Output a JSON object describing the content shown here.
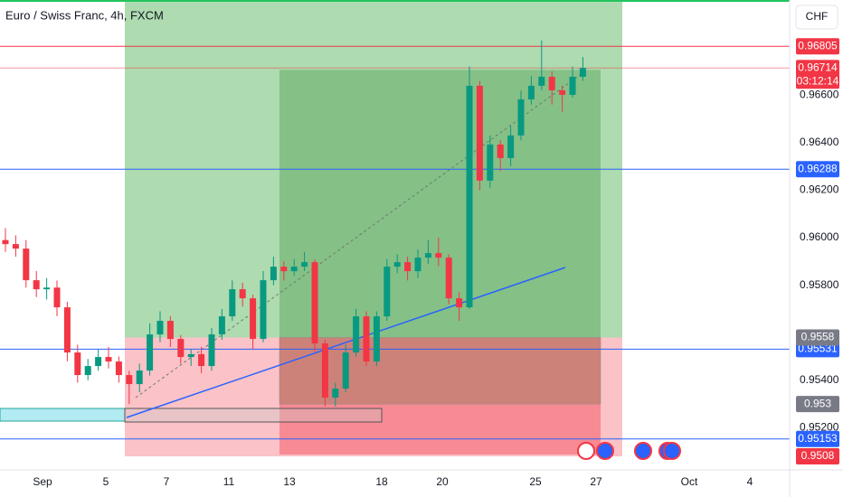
{
  "chart_data": {
    "type": "candlestick",
    "title": "Euro / Swiss Franc, 4h, FXCM",
    "currency": "CHF",
    "ylim": [
      0.95023,
      0.97
    ],
    "yticks": [
      {
        "value": 0.952,
        "label": "0.95200"
      },
      {
        "value": 0.954,
        "label": "0.95400"
      },
      {
        "value": 0.958,
        "label": "0.95800"
      },
      {
        "value": 0.96,
        "label": "0.96000"
      },
      {
        "value": 0.962,
        "label": "0.96200"
      },
      {
        "value": 0.964,
        "label": "0.96400"
      },
      {
        "value": 0.966,
        "label": "0.96600"
      }
    ],
    "xticks": [
      "Sep",
      "5",
      "7",
      "11",
      "13",
      "18",
      "20",
      "25",
      "27",
      "Oct",
      "4"
    ],
    "up_color": "#089981",
    "down_color": "#f23645",
    "candles": [
      [
        0.9599,
        0.9604,
        0.9594,
        0.95973
      ],
      [
        0.95973,
        0.9601,
        0.9592,
        0.95954
      ],
      [
        0.95954,
        0.9599,
        0.9579,
        0.95821
      ],
      [
        0.95821,
        0.9586,
        0.9575,
        0.95783
      ],
      [
        0.95783,
        0.9583,
        0.9574,
        0.9579
      ],
      [
        0.9579,
        0.9582,
        0.9567,
        0.95707
      ],
      [
        0.95707,
        0.9573,
        0.9548,
        0.95517
      ],
      [
        0.95517,
        0.9555,
        0.9539,
        0.95422
      ],
      [
        0.95422,
        0.9549,
        0.954,
        0.9546
      ],
      [
        0.9546,
        0.9553,
        0.9544,
        0.95498
      ],
      [
        0.95498,
        0.9554,
        0.9545,
        0.95479
      ],
      [
        0.95479,
        0.955,
        0.9539,
        0.95422
      ],
      [
        0.95422,
        0.9544,
        0.953,
        0.95384
      ],
      [
        0.95384,
        0.9547,
        0.9535,
        0.95441
      ],
      [
        0.95441,
        0.9564,
        0.9542,
        0.95593
      ],
      [
        0.95593,
        0.9569,
        0.9556,
        0.9565
      ],
      [
        0.9565,
        0.9567,
        0.9554,
        0.95574
      ],
      [
        0.95574,
        0.9559,
        0.9547,
        0.95498
      ],
      [
        0.95498,
        0.9553,
        0.9546,
        0.9551
      ],
      [
        0.9551,
        0.9554,
        0.9543,
        0.9546
      ],
      [
        0.9546,
        0.9562,
        0.9544,
        0.95593
      ],
      [
        0.95593,
        0.957,
        0.9557,
        0.95669
      ],
      [
        0.95669,
        0.9582,
        0.9565,
        0.95783
      ],
      [
        0.95783,
        0.9581,
        0.9571,
        0.95745
      ],
      [
        0.95745,
        0.9576,
        0.9553,
        0.95574
      ],
      [
        0.95574,
        0.9586,
        0.9556,
        0.95821
      ],
      [
        0.95821,
        0.9592,
        0.958,
        0.95878
      ],
      [
        0.95878,
        0.959,
        0.9582,
        0.95859
      ],
      [
        0.95859,
        0.9591,
        0.9584,
        0.95878
      ],
      [
        0.95878,
        0.9594,
        0.9586,
        0.95897
      ],
      [
        0.95897,
        0.9591,
        0.9552,
        0.95555
      ],
      [
        0.95555,
        0.9557,
        0.9529,
        0.95327
      ],
      [
        0.95327,
        0.9539,
        0.9529,
        0.95365
      ],
      [
        0.95365,
        0.9555,
        0.9535,
        0.95517
      ],
      [
        0.95517,
        0.957,
        0.955,
        0.95669
      ],
      [
        0.95669,
        0.9569,
        0.9546,
        0.95479
      ],
      [
        0.95479,
        0.9569,
        0.9546,
        0.95669
      ],
      [
        0.95669,
        0.9591,
        0.9565,
        0.95878
      ],
      [
        0.95878,
        0.9593,
        0.9585,
        0.95897
      ],
      [
        0.95897,
        0.9592,
        0.9582,
        0.95859
      ],
      [
        0.95859,
        0.9595,
        0.9583,
        0.95916
      ],
      [
        0.95916,
        0.9599,
        0.9589,
        0.95935
      ],
      [
        0.95935,
        0.96,
        0.9588,
        0.95916
      ],
      [
        0.95916,
        0.9593,
        0.9572,
        0.95745
      ],
      [
        0.95745,
        0.9577,
        0.9565,
        0.95707
      ],
      [
        0.95707,
        0.9672,
        0.957,
        0.96639
      ],
      [
        0.96639,
        0.9666,
        0.962,
        0.9624
      ],
      [
        0.9624,
        0.9643,
        0.9621,
        0.96392
      ],
      [
        0.96392,
        0.9641,
        0.9628,
        0.96335
      ],
      [
        0.96335,
        0.9647,
        0.963,
        0.9643
      ],
      [
        0.9643,
        0.9662,
        0.9641,
        0.96582
      ],
      [
        0.96582,
        0.9668,
        0.9656,
        0.96639
      ],
      [
        0.96639,
        0.9683,
        0.9662,
        0.96677
      ],
      [
        0.96677,
        0.967,
        0.9656,
        0.9662
      ],
      [
        0.9662,
        0.9664,
        0.9653,
        0.96601
      ],
      [
        0.96601,
        0.9672,
        0.9659,
        0.96677
      ],
      [
        0.96677,
        0.9676,
        0.9666,
        0.96714
      ]
    ],
    "price_labels": [
      {
        "price": 0.96805,
        "color": "#f23645",
        "line": true
      },
      {
        "price": 0.96714,
        "color": "#f23645",
        "line": true
      },
      {
        "price": 0.96288,
        "color": "#2962ff",
        "line": true
      },
      {
        "price": 0.95531,
        "color": "#2962ff",
        "line": true
      },
      {
        "price": 0.9558,
        "color": "#787b86",
        "line": false
      },
      {
        "price": 0.953,
        "color": "#787b86",
        "line": false
      },
      {
        "price": 0.95153,
        "color": "#2962ff",
        "line": true
      },
      {
        "price": 0.9508,
        "color": "#f23645",
        "line": false
      }
    ],
    "countdown": "03:12:14"
  }
}
